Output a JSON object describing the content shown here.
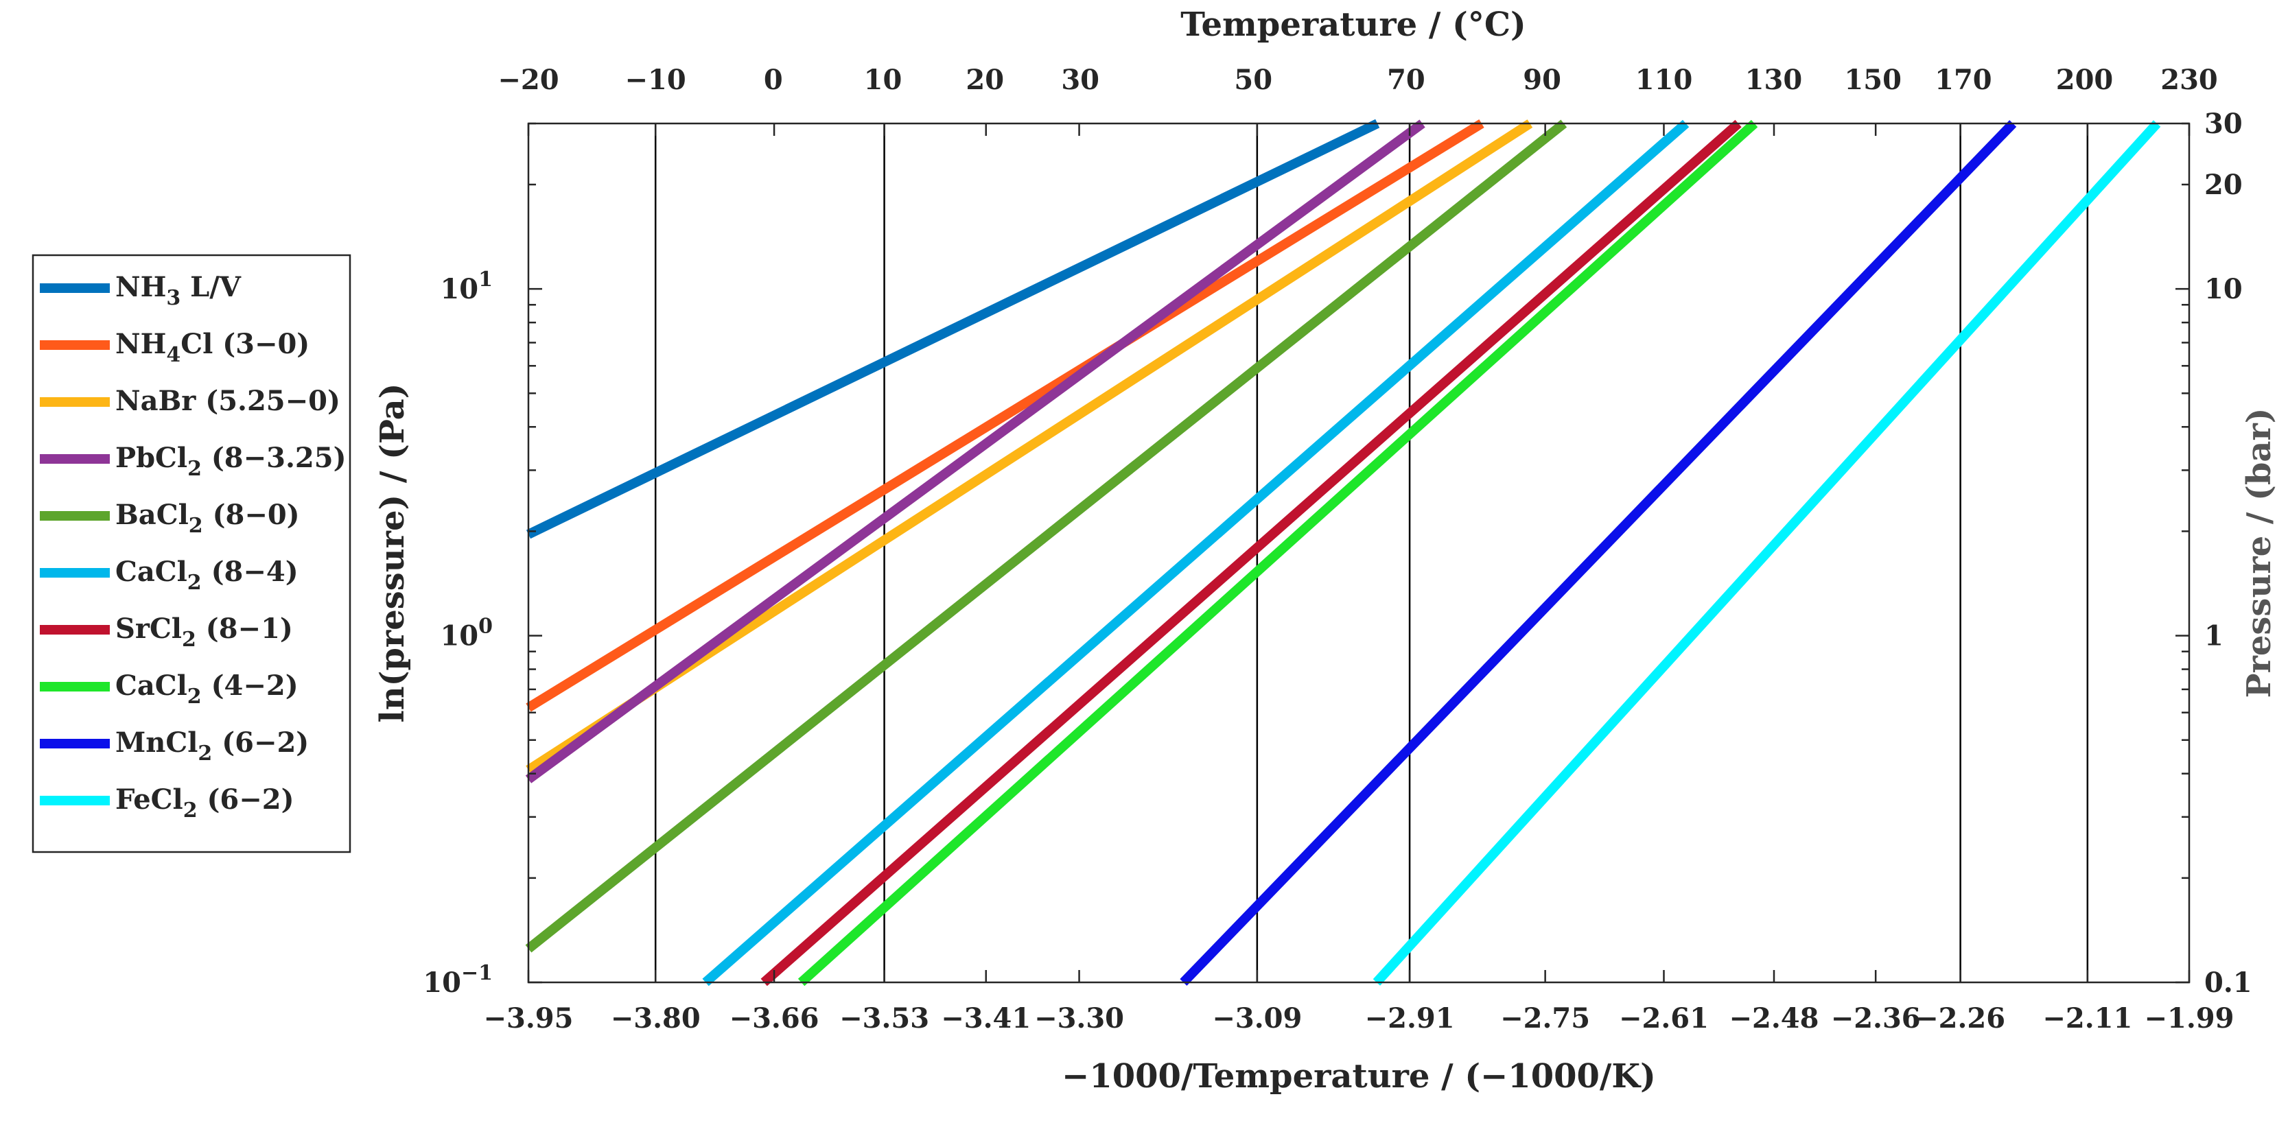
{
  "chart_data": {
    "type": "line",
    "title": "",
    "xlabel": "−1000/Temperature / (−1000/K)",
    "ylabel": "ln(pressure) / (Pa)",
    "x2label": "Temperature / (°C)",
    "y2label": "Pressure / (bar)",
    "xlim": [
      -3.95,
      -1.99
    ],
    "ylim": [
      0.1,
      30
    ],
    "yscale": "log",
    "xticks": [
      {
        "value": -3.95,
        "label": "−3.95"
      },
      {
        "value": -3.8,
        "label": "−3.80"
      },
      {
        "value": -3.66,
        "label": "−3.66"
      },
      {
        "value": -3.53,
        "label": "−3.53"
      },
      {
        "value": -3.41,
        "label": "−3.41"
      },
      {
        "value": -3.3,
        "label": "−3.30"
      },
      {
        "value": -3.09,
        "label": "−3.09"
      },
      {
        "value": -2.91,
        "label": "−2.91"
      },
      {
        "value": -2.75,
        "label": "−2.75"
      },
      {
        "value": -2.61,
        "label": "−2.61"
      },
      {
        "value": -2.48,
        "label": "−2.48"
      },
      {
        "value": -2.36,
        "label": "−2.36"
      },
      {
        "value": -2.26,
        "label": "−2.26"
      },
      {
        "value": -2.11,
        "label": "−2.11"
      },
      {
        "value": -1.99,
        "label": "−1.99"
      }
    ],
    "top_ticks": [
      {
        "celsius": -20,
        "label": "−20"
      },
      {
        "celsius": -10,
        "label": "−10"
      },
      {
        "celsius": 0,
        "label": "0"
      },
      {
        "celsius": 10,
        "label": "10"
      },
      {
        "celsius": 20,
        "label": "20"
      },
      {
        "celsius": 30,
        "label": "30"
      },
      {
        "celsius": 50,
        "label": "50"
      },
      {
        "celsius": 70,
        "label": "70"
      },
      {
        "celsius": 90,
        "label": "90"
      },
      {
        "celsius": 110,
        "label": "110"
      },
      {
        "celsius": 130,
        "label": "130"
      },
      {
        "celsius": 150,
        "label": "150"
      },
      {
        "celsius": 170,
        "label": "170"
      },
      {
        "celsius": 200,
        "label": "200"
      },
      {
        "celsius": 230,
        "label": "230"
      }
    ],
    "left_ticks": [
      {
        "value": 10,
        "base": "10",
        "exp": "1"
      },
      {
        "value": 1,
        "base": "10",
        "exp": "0"
      },
      {
        "value": 0.1,
        "base": "10",
        "exp": "−1"
      }
    ],
    "right_ticks": [
      {
        "value": 30,
        "label": "30"
      },
      {
        "value": 20,
        "label": "20"
      },
      {
        "value": 10,
        "label": "10"
      },
      {
        "value": 1,
        "label": "1"
      },
      {
        "value": 0.1,
        "label": "0.1"
      }
    ],
    "vertical_lines": [
      -3.8,
      -3.53,
      -3.09,
      -2.91,
      -2.26,
      -2.11
    ],
    "series": [
      {
        "name": "NH3 L/V",
        "legend": [
          [
            "NH",
            ""
          ],
          [
            "3",
            "sub"
          ],
          [
            " L/V",
            ""
          ]
        ],
        "color": "#0072BD",
        "x": [
          -3.95,
          -2.948
        ],
        "y": [
          1.96,
          30
        ]
      },
      {
        "name": "NH4Cl (3−0)",
        "legend": [
          [
            "NH",
            ""
          ],
          [
            "4",
            "sub"
          ],
          [
            "Cl (3−0)",
            ""
          ]
        ],
        "color": "#FF5A1A",
        "x": [
          -3.95,
          -2.825
        ],
        "y": [
          0.62,
          30
        ]
      },
      {
        "name": "NaBr (5.25−0)",
        "legend": [
          [
            "NaBr (5.25−0)",
            ""
          ]
        ],
        "color": "#FDB515",
        "x": [
          -3.95,
          -2.768
        ],
        "y": [
          0.41,
          30
        ]
      },
      {
        "name": "PbCl2 (8−3.25)",
        "legend": [
          [
            "PbCl",
            ""
          ],
          [
            "2",
            "sub"
          ],
          [
            " (8−3.25)",
            ""
          ]
        ],
        "color": "#8E3597",
        "x": [
          -3.95,
          -2.895
        ],
        "y": [
          0.385,
          30
        ]
      },
      {
        "name": "BaCl2 (8−0)",
        "legend": [
          [
            "BaCl",
            ""
          ],
          [
            "2",
            "sub"
          ],
          [
            " (8−0)",
            ""
          ]
        ],
        "color": "#5DA52C",
        "x": [
          -3.95,
          -2.728
        ],
        "y": [
          0.125,
          30
        ]
      },
      {
        "name": "CaCl2 (8−4)",
        "legend": [
          [
            "CaCl",
            ""
          ],
          [
            "2",
            "sub"
          ],
          [
            " (8−4)",
            ""
          ]
        ],
        "color": "#00B7EB",
        "x": [
          -3.741,
          -2.584
        ],
        "y": [
          0.1,
          30
        ]
      },
      {
        "name": "SrCl2 (8−1)",
        "legend": [
          [
            "SrCl",
            ""
          ],
          [
            "2",
            "sub"
          ],
          [
            " (8−1)",
            ""
          ]
        ],
        "color": "#C0122E",
        "x": [
          -3.672,
          -2.522
        ],
        "y": [
          0.1,
          30
        ]
      },
      {
        "name": "CaCl2 (4−2)",
        "legend": [
          [
            "CaCl",
            ""
          ],
          [
            "2",
            "sub"
          ],
          [
            " (4−2)",
            ""
          ]
        ],
        "color": "#1EE62A",
        "x": [
          -3.628,
          -2.503
        ],
        "y": [
          0.1,
          30
        ]
      },
      {
        "name": "MnCl2 (6−2)",
        "legend": [
          [
            "MnCl",
            ""
          ],
          [
            "2",
            "sub"
          ],
          [
            " (6−2)",
            ""
          ]
        ],
        "color": "#0B0FEA",
        "x": [
          -3.177,
          -2.198
        ],
        "y": [
          0.1,
          30
        ]
      },
      {
        "name": "FeCl2 (6−2)",
        "legend": [
          [
            "FeCl",
            ""
          ],
          [
            "2",
            "sub"
          ],
          [
            " (6−2)",
            ""
          ]
        ],
        "color": "#00F4FF",
        "x": [
          -2.949,
          -2.028
        ],
        "y": [
          0.1,
          30
        ]
      }
    ],
    "legend_position": "left"
  }
}
